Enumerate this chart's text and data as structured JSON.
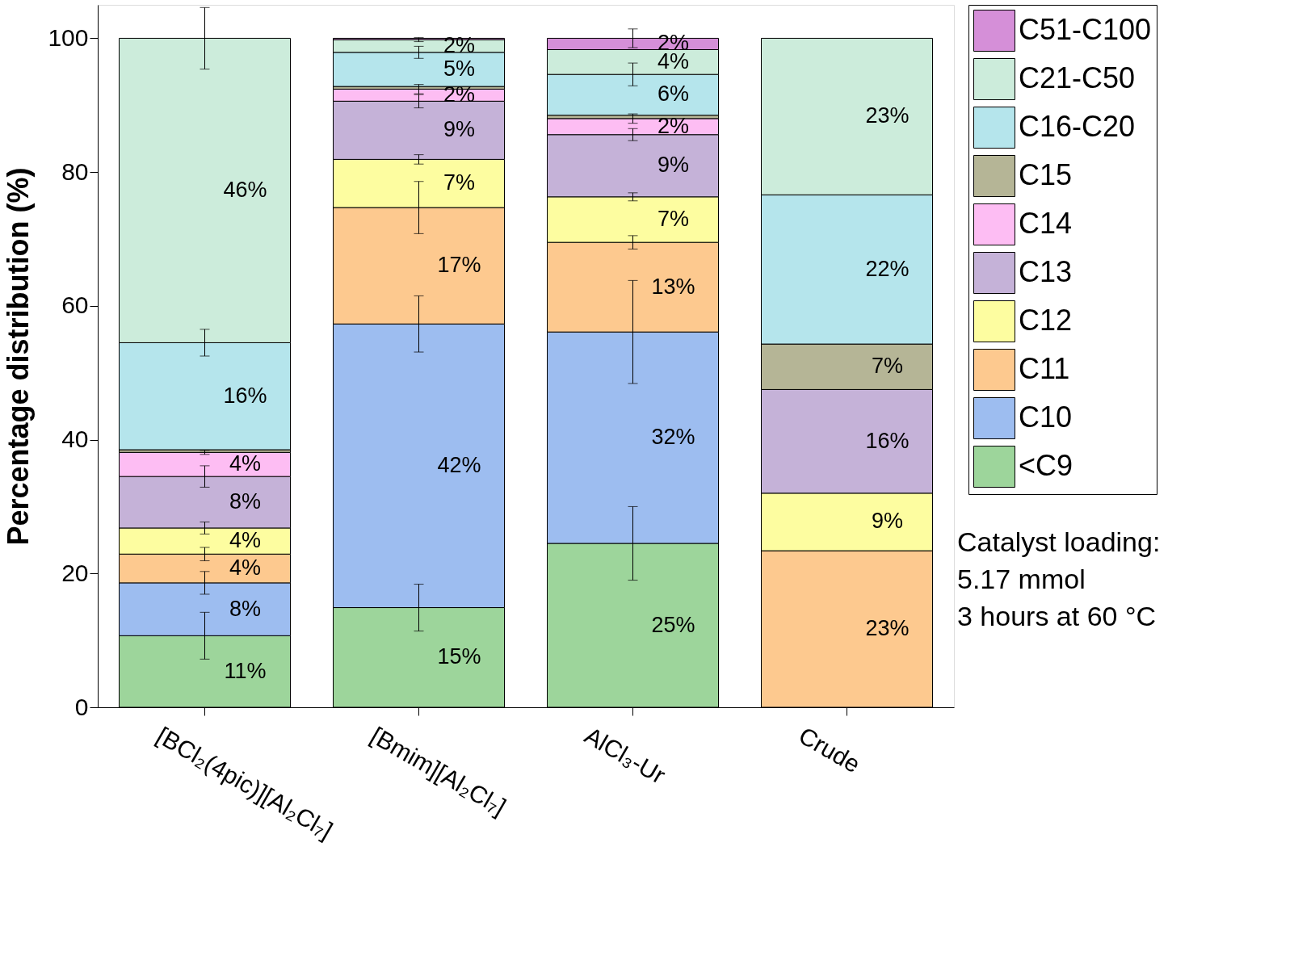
{
  "chart_data": {
    "type": "bar",
    "stacked": true,
    "ylabel": "Percentage distribution (%)",
    "categories": [
      "[BCl₂(4pic)][Al₂Cl₇]",
      "[Bmim][Al₂Cl₇]",
      "AlCl₃-Ur",
      "Crude"
    ],
    "ylim": [
      0,
      105
    ],
    "yticks": [
      0,
      20,
      40,
      60,
      80,
      100
    ],
    "grid": false,
    "legend": "top right",
    "annotations": [
      "Catalyst loading:\n5.17 mmol\n3 hours at 60 °C"
    ],
    "series": [
      {
        "name": "<C9",
        "color": "#9dd59b",
        "values": [
          10.7,
          14.9,
          24.5,
          null
        ],
        "errors": [
          3.5,
          3.5,
          5.5,
          null
        ],
        "value_labels": [
          "11%",
          "15%",
          "25%",
          null
        ]
      },
      {
        "name": "C10",
        "color": "#9dbdf0",
        "values": [
          7.9,
          42.4,
          31.6,
          null
        ],
        "errors": [
          1.7,
          4.2,
          7.7,
          null
        ],
        "value_labels": [
          "8%",
          "42%",
          "32%",
          null
        ]
      },
      {
        "name": "C11",
        "color": "#fdc98f",
        "values": [
          4.3,
          17.4,
          13.4,
          23.4
        ],
        "errors": [
          1.0,
          3.9,
          1.0,
          null
        ],
        "value_labels": [
          "4%",
          "17%",
          "13%",
          "23%"
        ]
      },
      {
        "name": "C12",
        "color": "#fdfda0",
        "values": [
          3.9,
          7.2,
          6.8,
          8.6
        ],
        "errors": [
          0.9,
          0.7,
          0.6,
          null
        ],
        "value_labels": [
          "4%",
          "7%",
          "7%",
          "9%"
        ]
      },
      {
        "name": "C13",
        "color": "#c5b2d8",
        "values": [
          7.7,
          8.7,
          9.3,
          15.5
        ],
        "errors": [
          1.6,
          1.0,
          0.9,
          null
        ],
        "value_labels": [
          "8%",
          "9%",
          "9%",
          "16%"
        ]
      },
      {
        "name": "C14",
        "color": "#fdbdf3",
        "values": [
          3.6,
          1.8,
          2.4,
          null
        ],
        "errors": [
          0.3,
          0.7,
          0.7,
          null
        ],
        "value_labels": [
          "4%",
          "2%",
          "2%",
          null
        ]
      },
      {
        "name": "C15",
        "color": "#b5b596",
        "values": [
          0.4,
          0.4,
          0.5,
          6.8
        ],
        "errors": [
          null,
          null,
          null,
          null
        ],
        "value_labels": [
          null,
          null,
          null,
          "7%"
        ]
      },
      {
        "name": "C16-C20",
        "color": "#b5e5ec",
        "values": [
          16.0,
          5.1,
          6.1,
          22.3
        ],
        "errors": [
          2.0,
          0.9,
          1.7,
          null
        ],
        "value_labels": [
          "16%",
          "5%",
          "6%",
          "22%"
        ]
      },
      {
        "name": "C21-C50",
        "color": "#ccecdb",
        "values": [
          45.5,
          1.9,
          3.7,
          23.4
        ],
        "errors": [
          4.6,
          0.3,
          null,
          null
        ],
        "value_labels": [
          "46%",
          "2%",
          "4%",
          "23%"
        ]
      },
      {
        "name": "C51-C100",
        "color": "#d58fd8",
        "values": [
          null,
          0.2,
          1.7,
          null
        ],
        "errors": [
          null,
          null,
          1.4,
          null
        ],
        "value_labels": [
          null,
          null,
          "2%",
          null
        ]
      }
    ]
  }
}
